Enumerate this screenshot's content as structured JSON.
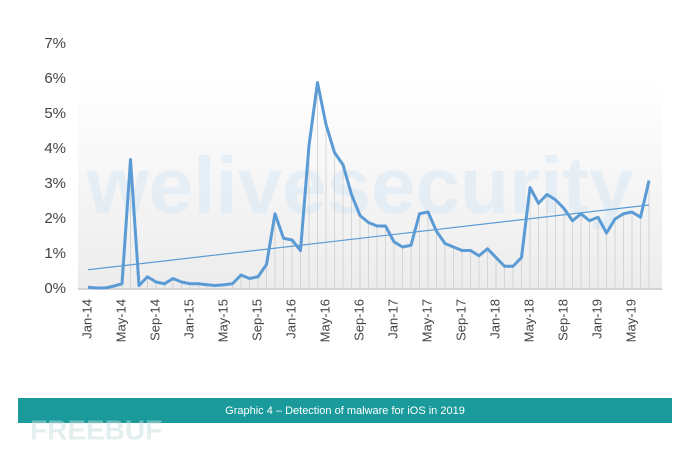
{
  "chart_data": {
    "type": "line",
    "caption": "Graphic 4 – Detection of malware for iOS in 2019",
    "watermarks": [
      "welivesecurity",
      "FREEBUF"
    ],
    "categories": [
      "Jan-14",
      null,
      null,
      null,
      "May-14",
      null,
      null,
      null,
      "Sep-14",
      null,
      null,
      null,
      "Jan-15",
      null,
      null,
      null,
      "May-15",
      null,
      null,
      null,
      "Sep-15",
      null,
      null,
      null,
      "Jan-16",
      null,
      null,
      null,
      "May-16",
      null,
      null,
      null,
      "Sep-16",
      null,
      null,
      null,
      "Jan-17",
      null,
      null,
      null,
      "May-17",
      null,
      null,
      null,
      "Sep-17",
      null,
      null,
      null,
      "Jan-18",
      null,
      null,
      null,
      "May-18",
      null,
      null,
      null,
      "Sep-18",
      null,
      null,
      null,
      "Jan-19",
      null,
      null,
      null,
      "May-19",
      null,
      null
    ],
    "series": [
      {
        "color": "#5b9bd5",
        "values": [
          0.05,
          0.03,
          0.03,
          0.08,
          0.15,
          3.7,
          0.1,
          0.35,
          0.2,
          0.15,
          0.3,
          0.2,
          0.15,
          0.15,
          0.12,
          0.1,
          0.12,
          0.15,
          0.4,
          0.3,
          0.35,
          0.7,
          2.15,
          1.45,
          1.4,
          1.1,
          4.1,
          5.9,
          4.7,
          3.9,
          3.55,
          2.7,
          2.1,
          1.9,
          1.8,
          1.8,
          1.35,
          1.2,
          1.25,
          2.15,
          2.2,
          1.65,
          1.3,
          1.2,
          1.1,
          1.1,
          0.95,
          1.15,
          0.9,
          0.65,
          0.65,
          0.9,
          2.9,
          2.45,
          2.7,
          2.55,
          2.3,
          1.95,
          2.15,
          1.95,
          2.05,
          1.6,
          2.0,
          2.15,
          2.2,
          2.05,
          3.1
        ]
      }
    ],
    "trendline": {
      "color": "#5b9bd5",
      "values": [
        0.55,
        2.4
      ]
    },
    "ylim": [
      0,
      7
    ],
    "yticks": [
      {
        "value": 0,
        "label": "0%"
      },
      {
        "value": 1,
        "label": "1%"
      },
      {
        "value": 2,
        "label": "2%"
      },
      {
        "value": 3,
        "label": "3%"
      },
      {
        "value": 4,
        "label": "4%"
      },
      {
        "value": 5,
        "label": "5%"
      },
      {
        "value": 6,
        "label": "6%"
      },
      {
        "value": 7,
        "label": "7%"
      }
    ],
    "grid": false
  }
}
